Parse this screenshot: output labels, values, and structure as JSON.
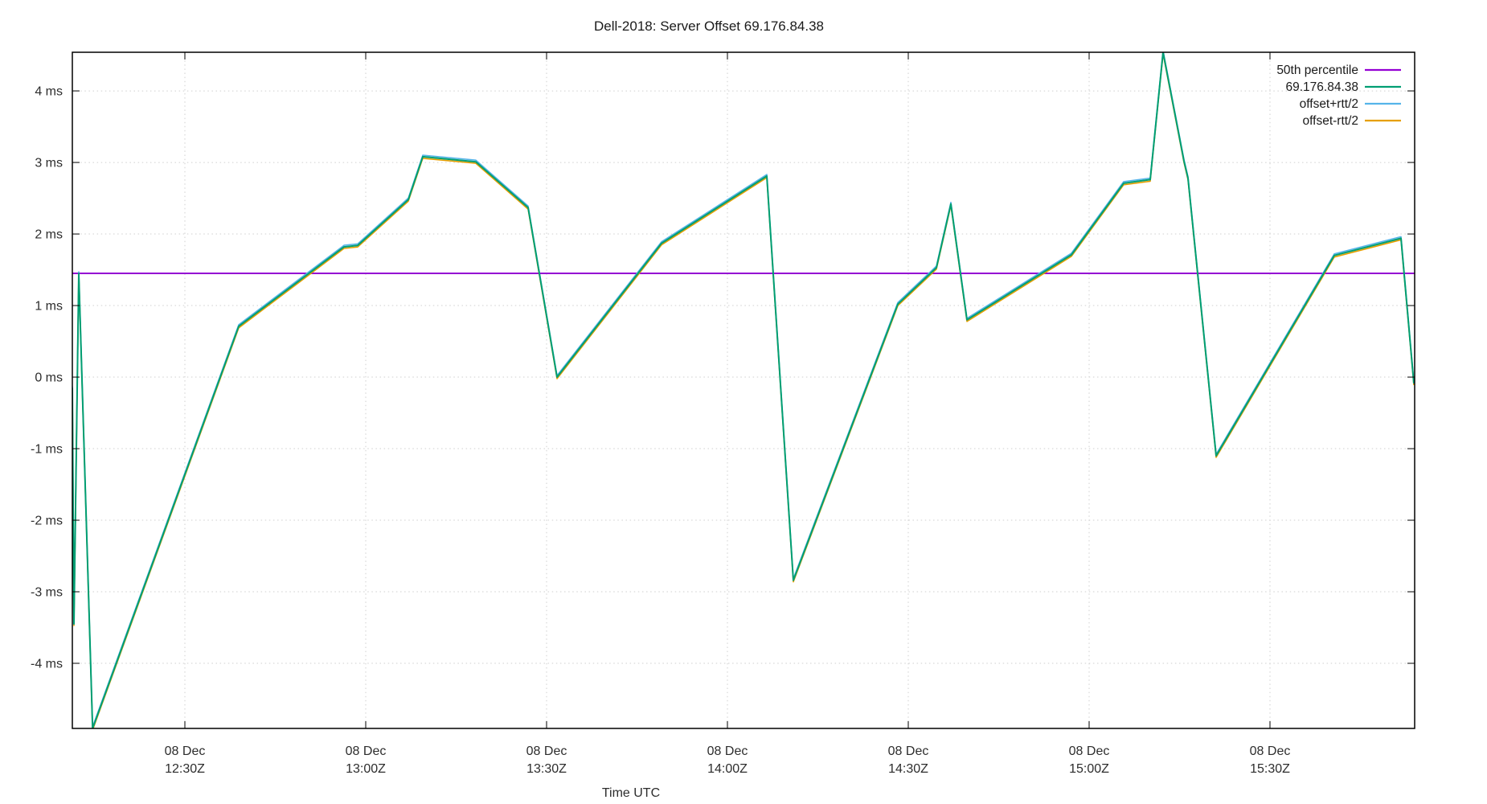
{
  "window": {
    "title": "Dell-2018: Server Offset 69.176.84.38"
  },
  "chart_data": {
    "type": "line",
    "title": "Dell-2018: Server Offset 69.176.84.38",
    "xlabel": "Time UTC",
    "ylabel": "",
    "grid": true,
    "background": "#ffffff",
    "x_axis": {
      "range_hours": [
        12.18889,
        15.9
      ],
      "ticks": [
        {
          "hour": 12.5,
          "line1": "08 Dec",
          "line2": "12:30Z"
        },
        {
          "hour": 13.0,
          "line1": "08 Dec",
          "line2": "13:00Z"
        },
        {
          "hour": 13.5,
          "line1": "08 Dec",
          "line2": "13:30Z"
        },
        {
          "hour": 14.0,
          "line1": "08 Dec",
          "line2": "14:00Z"
        },
        {
          "hour": 14.5,
          "line1": "08 Dec",
          "line2": "14:30Z"
        },
        {
          "hour": 15.0,
          "line1": "08 Dec",
          "line2": "15:00Z"
        },
        {
          "hour": 15.5,
          "line1": "08 Dec",
          "line2": "15:30Z"
        }
      ]
    },
    "y_axis": {
      "range_ms": [
        -4.91,
        4.54
      ],
      "ticks": [
        {
          "value": 4,
          "label": "4 ms"
        },
        {
          "value": 3,
          "label": "3 ms"
        },
        {
          "value": 2,
          "label": "2 ms"
        },
        {
          "value": 1,
          "label": "1 ms"
        },
        {
          "value": 0,
          "label": "0 ms"
        },
        {
          "value": -1,
          "label": "-1 ms"
        },
        {
          "value": -2,
          "label": "-2 ms"
        },
        {
          "value": -3,
          "label": "-3 ms"
        },
        {
          "value": -4,
          "label": "-4 ms"
        }
      ]
    },
    "legend": {
      "position": "top-right",
      "entries": [
        {
          "label": "50th percentile",
          "color": "#9400d3"
        },
        {
          "label": "69.176.84.38",
          "color": "#009e73"
        },
        {
          "label": "offset+rtt/2",
          "color": "#56b4e9"
        },
        {
          "label": "offset-rtt/2",
          "color": "#e69f00"
        }
      ]
    },
    "percentile_50_ms": 1.45,
    "companions": [
      {
        "name": "offset+rtt/2",
        "color": "#56b4e9",
        "delta_ms": 0.022
      },
      {
        "name": "offset-rtt/2",
        "color": "#e69f00",
        "delta_ms": -0.022
      }
    ],
    "series": [
      {
        "name": "69.176.84.38",
        "color": "#009e73",
        "points_hour_ms": [
          [
            12.1889,
            -0.15
          ],
          [
            12.1933,
            -3.45
          ],
          [
            12.2067,
            1.45
          ],
          [
            12.245,
            -4.91
          ],
          [
            12.6489,
            0.71
          ],
          [
            12.94,
            1.82
          ],
          [
            12.9778,
            1.84
          ],
          [
            13.1178,
            2.48
          ],
          [
            13.1578,
            3.08
          ],
          [
            13.3044,
            3.01
          ],
          [
            13.4489,
            2.37
          ],
          [
            13.5289,
            0.0
          ],
          [
            13.8178,
            1.87
          ],
          [
            14.1089,
            2.81
          ],
          [
            14.1822,
            -2.84
          ],
          [
            14.4711,
            1.02
          ],
          [
            14.5778,
            1.53
          ],
          [
            14.6178,
            2.42
          ],
          [
            14.6622,
            0.8
          ],
          [
            14.9511,
            1.71
          ],
          [
            15.0956,
            2.71
          ],
          [
            15.1689,
            2.76
          ],
          [
            15.2044,
            4.54
          ],
          [
            15.2622,
            3.02
          ],
          [
            15.2733,
            2.78
          ],
          [
            15.3511,
            -1.1
          ],
          [
            15.6778,
            1.7
          ],
          [
            15.8622,
            1.94
          ],
          [
            15.8978,
            -0.09
          ]
        ]
      }
    ],
    "colors": {
      "grid": "#cfcfcf",
      "border": "#000000",
      "text": "#2d2d2d"
    }
  }
}
